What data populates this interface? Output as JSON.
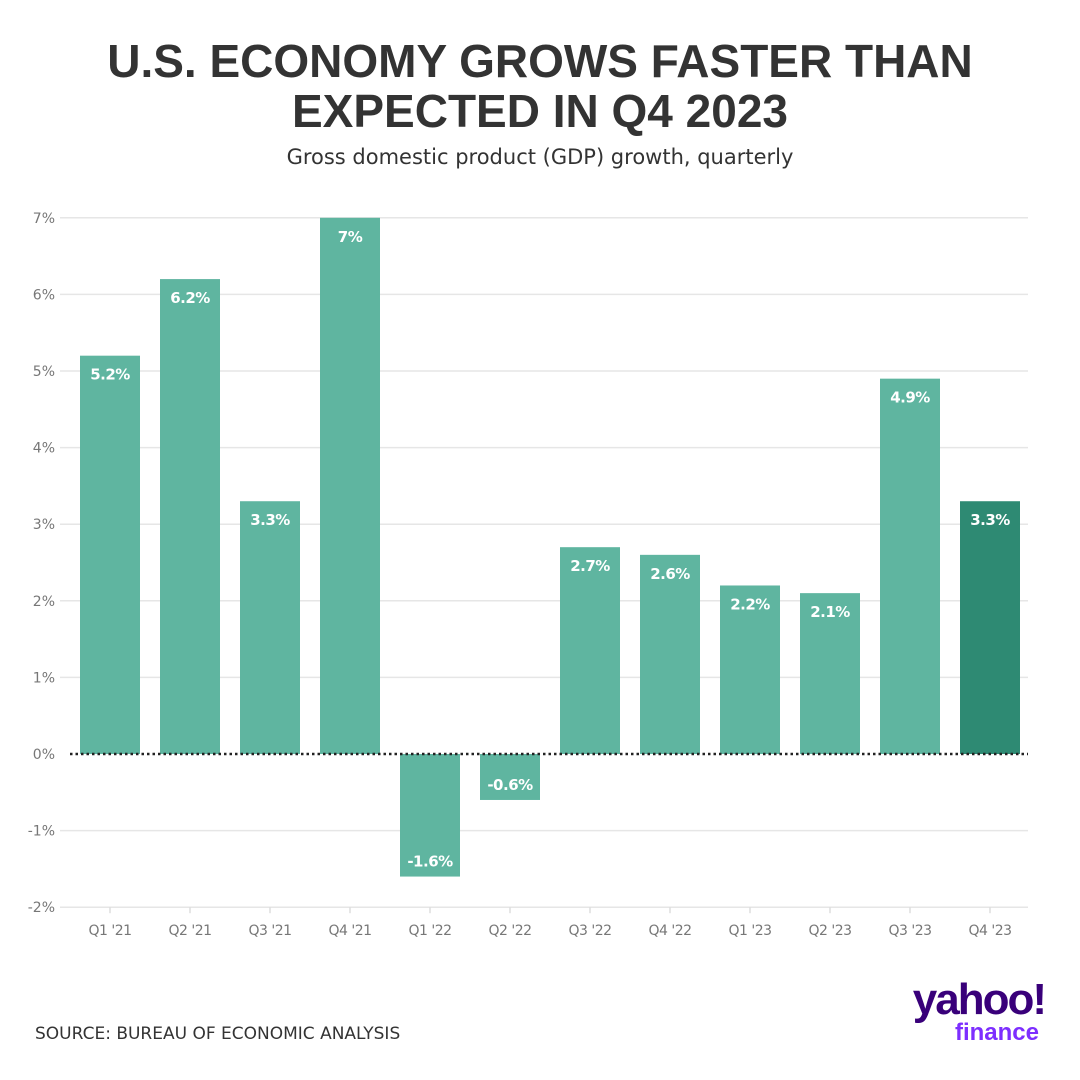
{
  "chart_data": {
    "type": "bar",
    "title": "U.S. ECONOMY GROWS FASTER THAN EXPECTED IN Q4 2023",
    "subtitle": "Gross domestic product (GDP) growth, quarterly",
    "categories": [
      "Q1 '21",
      "Q2 '21",
      "Q3 '21",
      "Q4 '21",
      "Q1 '22",
      "Q2 '22",
      "Q3 '22",
      "Q4 '22",
      "Q1 '23",
      "Q2 '23",
      "Q3 '23",
      "Q4 '23"
    ],
    "values": [
      5.2,
      6.2,
      3.3,
      7,
      -1.6,
      -0.6,
      2.7,
      2.6,
      2.2,
      2.1,
      4.9,
      3.3
    ],
    "data_labels": [
      "5.2%",
      "6.2%",
      "3.3%",
      "7%",
      "-1.6%",
      "-0.6%",
      "2.7%",
      "2.6%",
      "2.2%",
      "2.1%",
      "4.9%",
      "3.3%"
    ],
    "ylim": [
      -2,
      7
    ],
    "yticks": [
      -2,
      -1,
      0,
      1,
      2,
      3,
      4,
      5,
      6,
      7
    ],
    "ytick_labels": [
      "-2%",
      "-1%",
      "0%",
      "1%",
      "2%",
      "3%",
      "4%",
      "5%",
      "6%",
      "7%"
    ],
    "xlabel": "",
    "ylabel": "",
    "grid": true,
    "zero_line": "dotted",
    "colors": {
      "bar": "#5fb5a0",
      "highlight": "#2e8a73",
      "highlight_index": 11
    }
  },
  "source": "SOURCE: BUREAU OF ECONOMIC ANALYSIS",
  "logo": {
    "word": "yahoo!",
    "sub": "finance"
  }
}
